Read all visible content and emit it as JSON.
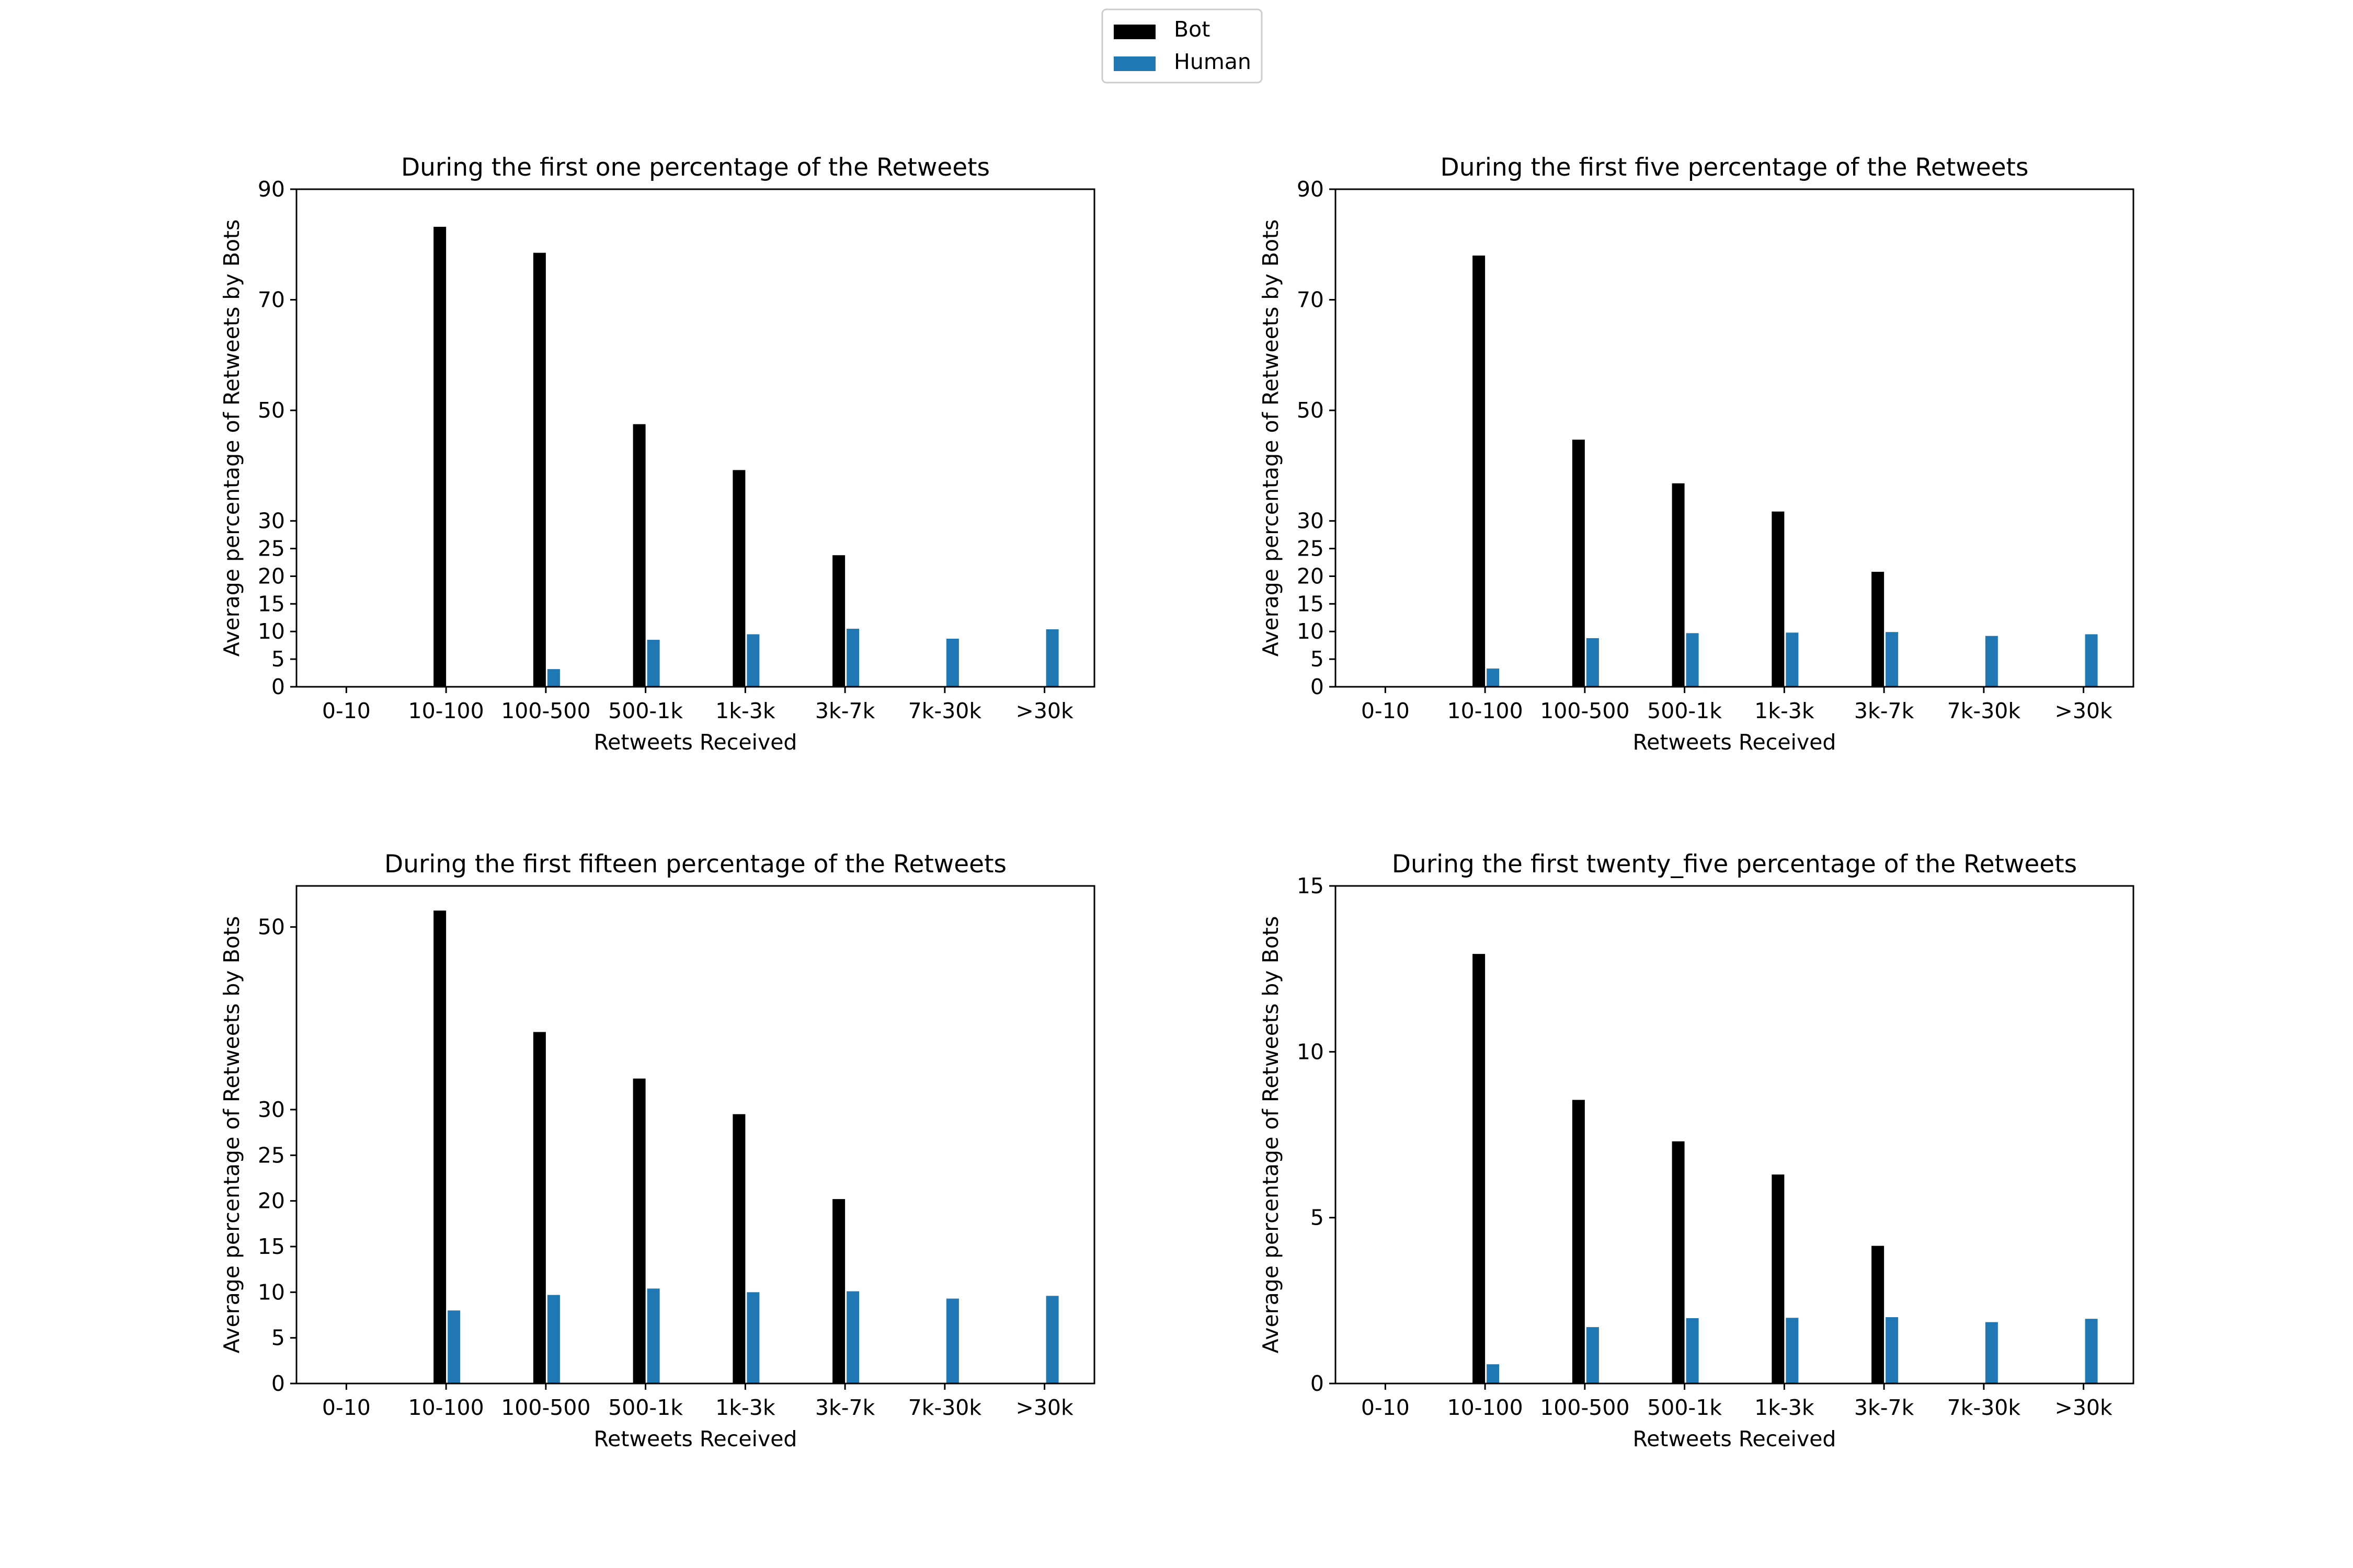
{
  "legend": {
    "placement": "top-center",
    "entries": [
      {
        "label": "Bot",
        "color": "#000000"
      },
      {
        "label": "Human",
        "color": "#1f77b4"
      }
    ]
  },
  "chart_data": [
    {
      "type": "bar",
      "title": "During the first one percentage of the Retweets",
      "xlabel": "Retweets Received",
      "ylabel": "Average percentage of Retweets by Bots",
      "categories": [
        "0-10",
        "10-100",
        "100-500",
        "500-1k",
        "1k-3k",
        "3k-7k",
        "7k-30k",
        ">30k"
      ],
      "ylim": [
        0,
        90
      ],
      "yticks": [
        0,
        5,
        10,
        15,
        20,
        25,
        30,
        50,
        70,
        90
      ],
      "grid": false,
      "series": [
        {
          "name": "Bot",
          "color": "#000000",
          "values": [
            0,
            83.2,
            78.5,
            47.5,
            39.2,
            23.8,
            0,
            0
          ]
        },
        {
          "name": "Human",
          "color": "#1f77b4",
          "values": [
            0,
            0,
            3.2,
            8.5,
            9.5,
            10.5,
            8.7,
            10.4
          ]
        }
      ]
    },
    {
      "type": "bar",
      "title": "During the first five percentage of the Retweets",
      "xlabel": "Retweets Received",
      "ylabel": "Average percentage of Retweets by Bots",
      "categories": [
        "0-10",
        "10-100",
        "100-500",
        "500-1k",
        "1k-3k",
        "3k-7k",
        "7k-30k",
        ">30k"
      ],
      "ylim": [
        0,
        90
      ],
      "yticks": [
        0,
        5,
        10,
        15,
        20,
        25,
        30,
        50,
        70,
        90
      ],
      "grid": false,
      "series": [
        {
          "name": "Bot",
          "color": "#000000",
          "values": [
            0,
            78.0,
            44.7,
            36.8,
            31.7,
            20.8,
            0,
            0
          ]
        },
        {
          "name": "Human",
          "color": "#1f77b4",
          "values": [
            0,
            3.3,
            8.8,
            9.7,
            9.8,
            9.9,
            9.2,
            9.5
          ]
        }
      ]
    },
    {
      "type": "bar",
      "title": "During the first fifteen percentage of the Retweets",
      "xlabel": "Retweets Received",
      "ylabel": "Average percentage of Retweets by Bots",
      "categories": [
        "0-10",
        "10-100",
        "100-500",
        "500-1k",
        "1k-3k",
        "3k-7k",
        "7k-30k",
        ">30k"
      ],
      "ylim": [
        0,
        54.5
      ],
      "yticks": [
        0,
        5,
        10,
        15,
        20,
        25,
        30,
        50
      ],
      "grid": false,
      "series": [
        {
          "name": "Bot",
          "color": "#000000",
          "values": [
            0,
            51.8,
            38.5,
            33.4,
            29.5,
            20.2,
            0,
            0
          ]
        },
        {
          "name": "Human",
          "color": "#1f77b4",
          "values": [
            0,
            8.0,
            9.7,
            10.4,
            10.0,
            10.1,
            9.3,
            9.6
          ]
        }
      ]
    },
    {
      "type": "bar",
      "title": "During the first twenty_five percentage of the Retweets",
      "xlabel": "Retweets Received",
      "ylabel": "Average percentage of Retweets by Bots",
      "categories": [
        "0-10",
        "10-100",
        "100-500",
        "500-1k",
        "1k-3k",
        "3k-7k",
        "7k-30k",
        ">30k"
      ],
      "ylim": [
        0,
        15
      ],
      "yticks": [
        0,
        5,
        10,
        15
      ],
      "grid": false,
      "series": [
        {
          "name": "Bot",
          "color": "#000000",
          "values": [
            0,
            12.95,
            8.55,
            7.3,
            6.3,
            4.15,
            0,
            0
          ]
        },
        {
          "name": "Human",
          "color": "#1f77b4",
          "values": [
            0,
            0.58,
            1.7,
            1.97,
            1.98,
            2.0,
            1.85,
            1.95
          ]
        }
      ]
    }
  ]
}
